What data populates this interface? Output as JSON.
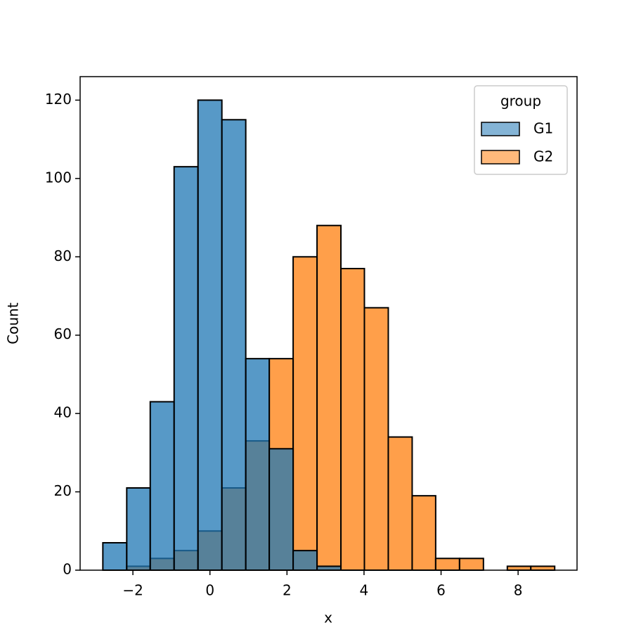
{
  "chart_data": {
    "type": "histogram",
    "xlabel": "x",
    "ylabel": "Count",
    "bins": [
      -2.78,
      -2.16,
      -1.55,
      -0.93,
      -0.31,
      0.31,
      0.93,
      1.54,
      2.16,
      2.78,
      3.4,
      4.01,
      4.63,
      5.25,
      5.86,
      6.48,
      7.1,
      7.72,
      8.33,
      8.95
    ],
    "series": [
      {
        "name": "G1",
        "color": "#1f77b4",
        "values": [
          7,
          21,
          43,
          103,
          120,
          115,
          54,
          31,
          5,
          1,
          0,
          0,
          0,
          0,
          0,
          0,
          0,
          0,
          0
        ]
      },
      {
        "name": "G2",
        "color": "#ff7f0e",
        "values": [
          0,
          1,
          3,
          5,
          10,
          21,
          33,
          54,
          80,
          88,
          77,
          67,
          34,
          19,
          3,
          3,
          0,
          1,
          1
        ]
      }
    ],
    "legend_title": "group",
    "legend": "upper right",
    "xlim": [
      -3.37,
      9.53
    ],
    "ylim": [
      0,
      126
    ],
    "xticks": [
      {
        "value": -2,
        "label": "−2"
      },
      0,
      2,
      4,
      6,
      8
    ],
    "yticks": [
      0,
      20,
      40,
      60,
      80,
      100,
      120
    ]
  }
}
